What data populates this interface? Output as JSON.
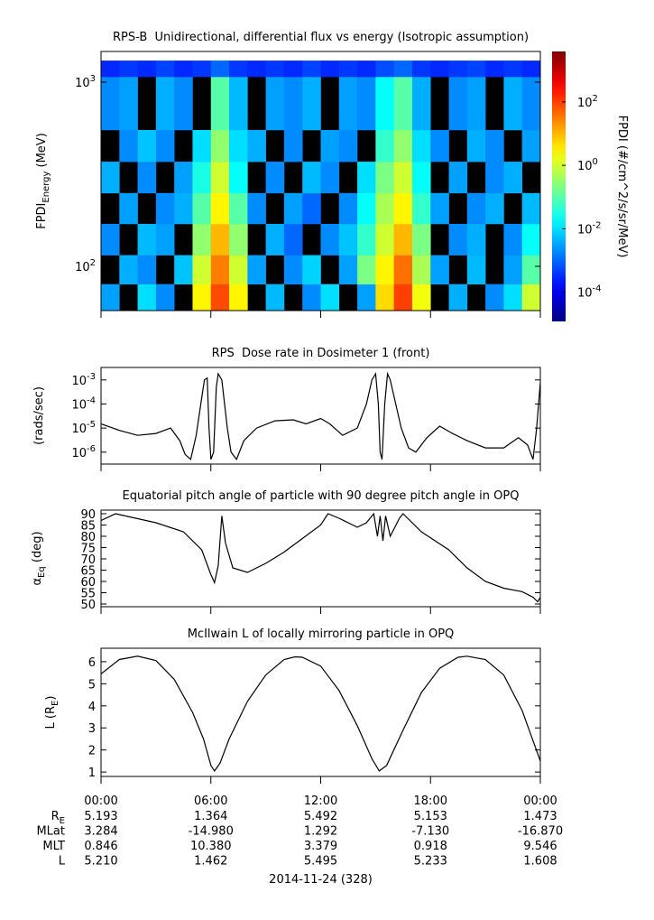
{
  "chart_data": [
    {
      "type": "heatmap",
      "title": "RPS-B  Unidirectional, differential flux vs energy (Isotropic assumption)",
      "ylabel": "FPDI_{Energy} (MeV)",
      "ylog": true,
      "ylim": [
        57.5,
        1468
      ],
      "yticks": [
        {
          "value": 100,
          "label": "10^{2}"
        },
        {
          "value": 1000,
          "label": "10^{3}"
        }
      ],
      "xlim": [
        0,
        24
      ],
      "xticks": [
        0,
        6,
        12,
        18,
        24
      ],
      "xbins": [
        0,
        1,
        2,
        3,
        4,
        5,
        6,
        7,
        8,
        9,
        10,
        11,
        12,
        13,
        14,
        15,
        16,
        17,
        18,
        19,
        20,
        21,
        22,
        23,
        24
      ],
      "ybins": [
        57.5,
        80,
        115,
        170,
        250,
        370,
        550,
        1070,
        1310
      ],
      "z": [
        [
          0.003,
          null,
          0.01,
          0.002,
          null,
          3,
          80,
          3,
          null,
          0.005,
          null,
          0.002,
          0.01,
          null,
          0.003,
          5,
          100,
          2,
          null,
          0.004,
          null,
          0.002,
          0.01,
          1
        ],
        [
          null,
          0.004,
          0.002,
          null,
          0.006,
          1,
          30,
          1,
          0.003,
          null,
          0.002,
          0.008,
          null,
          0.003,
          0.2,
          3,
          40,
          0.5,
          0.003,
          null,
          0.005,
          null,
          0.003,
          0.1
        ],
        [
          0.002,
          null,
          0.005,
          0.003,
          null,
          0.3,
          10,
          0.3,
          null,
          0.004,
          0.001,
          null,
          0.002,
          0.006,
          0.05,
          1,
          10,
          0.2,
          null,
          0.002,
          0.004,
          null,
          0.002,
          0.02
        ],
        [
          null,
          0.003,
          null,
          0.002,
          0.004,
          0.1,
          3,
          0.1,
          0.002,
          null,
          0.003,
          0.001,
          null,
          0.002,
          0.02,
          0.5,
          3,
          0.05,
          0.003,
          null,
          0.002,
          0.004,
          null,
          0.005
        ],
        [
          0.004,
          null,
          0.002,
          null,
          0.003,
          0.03,
          1,
          0.02,
          null,
          0.002,
          null,
          0.005,
          0.002,
          null,
          0.01,
          0.2,
          1,
          0.02,
          null,
          0.003,
          null,
          0.002,
          0.004,
          null
        ],
        [
          null,
          0.002,
          0.006,
          0.002,
          null,
          0.01,
          0.3,
          0.01,
          0.004,
          null,
          0.002,
          null,
          0.003,
          0.002,
          null,
          0.05,
          0.3,
          0.01,
          0.002,
          null,
          0.004,
          0.002,
          null,
          0.003
        ],
        [
          0.002,
          0.003,
          null,
          0.004,
          0.002,
          null,
          0.1,
          0.005,
          null,
          0.003,
          0.002,
          0.004,
          null,
          0.003,
          0.002,
          0.02,
          0.1,
          0.004,
          null,
          0.002,
          0.003,
          null,
          0.004,
          0.002
        ],
        [
          0.0003,
          0.0004,
          0.0003,
          0.0005,
          0.0003,
          0.0004,
          0.001,
          0.0004,
          0.0003,
          0.0004,
          0.0003,
          0.0005,
          0.0003,
          0.0004,
          0.0003,
          0.0006,
          0.001,
          0.0004,
          0.0003,
          0.0004,
          0.0005,
          0.0003,
          0.0004,
          0.0003
        ]
      ],
      "colorbar": {
        "label": "FPDI (#/cm^2/s/sr/MeV)",
        "log": true,
        "clim": [
          1.2e-05,
          3900
        ],
        "ticks": [
          {
            "value": 0.0001,
            "label": "10^{-4}"
          },
          {
            "value": 0.01,
            "label": "10^{-2}"
          },
          {
            "value": 1,
            "label": "10^{0}"
          },
          {
            "value": 100,
            "label": "10^{2}"
          }
        ]
      }
    },
    {
      "type": "line",
      "title": "RPS  Dose rate in Dosimeter 1 (front)",
      "ylabel": "(rads/sec)",
      "ylog": true,
      "ylim": [
        3.2e-07,
        0.0033
      ],
      "yticks": [
        {
          "value": 1e-06,
          "label": "10^{-6}"
        },
        {
          "value": 1e-05,
          "label": "10^{-5}"
        },
        {
          "value": 0.0001,
          "label": "10^{-4}"
        },
        {
          "value": 0.001,
          "label": "10^{-3}"
        }
      ],
      "xlim": [
        0,
        24
      ],
      "xticks": [
        0,
        6,
        12,
        18,
        24
      ],
      "color": "#000000",
      "x": [
        0,
        1,
        2,
        3,
        3.8,
        4.3,
        4.6,
        4.9,
        5.2,
        5.45,
        5.65,
        5.8,
        5.9,
        6.0,
        6.15,
        6.3,
        6.4,
        6.6,
        6.9,
        7.1,
        7.4,
        7.8,
        8.5,
        9.5,
        10.5,
        11.2,
        12,
        12.5,
        13.2,
        14,
        14.5,
        14.8,
        15.0,
        15.15,
        15.25,
        15.35,
        15.5,
        15.65,
        15.8,
        16.1,
        16.4,
        16.8,
        17.2,
        17.8,
        18.5,
        19.2,
        20,
        21,
        22,
        22.8,
        23.3,
        23.6,
        23.8,
        24
      ],
      "values": [
        1.5e-05,
        8e-06,
        5e-06,
        6e-06,
        1e-05,
        3e-06,
        8e-07,
        5e-07,
        5e-06,
        0.0001,
        0.001,
        0.0012,
        1e-05,
        5e-07,
        1e-06,
        0.0005,
        0.0018,
        0.001,
        1e-05,
        1e-06,
        5e-07,
        3e-06,
        1e-05,
        2e-05,
        2.2e-05,
        1.5e-05,
        2.5e-05,
        1.5e-05,
        5e-06,
        1e-05,
        0.0001,
        0.001,
        0.0018,
        0.0001,
        1e-06,
        5e-07,
        0.0001,
        0.0018,
        0.001,
        0.0001,
        1e-05,
        1.5e-06,
        1e-06,
        4e-06,
        1.2e-05,
        6e-06,
        3e-06,
        1.5e-06,
        1.5e-06,
        4e-06,
        2e-06,
        5e-07,
        1e-05,
        0.0008
      ]
    },
    {
      "type": "line",
      "title": "Equatorial pitch angle of particle with 90 degree pitch angle in OPQ",
      "ylabel": "α_{Eq} (deg)",
      "ylim": [
        48.8,
        91.6
      ],
      "yticks": [
        50,
        55,
        60,
        65,
        70,
        75,
        80,
        85,
        90
      ],
      "xlim": [
        0,
        24
      ],
      "xticks": [
        0,
        6,
        12,
        18,
        24
      ],
      "color": "#000000",
      "x": [
        0,
        0.8,
        3,
        4.5,
        5.5,
        6,
        6.2,
        6.4,
        6.6,
        6.8,
        7.2,
        8,
        9,
        10,
        11,
        12,
        12.4,
        13,
        14,
        14.5,
        14.9,
        15.1,
        15.25,
        15.4,
        15.55,
        15.8,
        16.3,
        16.5,
        17.5,
        19,
        20,
        21,
        22,
        23,
        23.6,
        23.85,
        24
      ],
      "values": [
        87,
        90,
        86,
        82,
        74,
        63,
        59.5,
        67,
        89,
        77,
        66,
        64,
        68,
        73,
        79,
        85,
        90,
        88,
        84,
        86,
        90,
        80,
        89,
        78,
        89,
        80,
        88,
        90,
        82,
        74,
        66,
        60,
        57,
        55.5,
        53,
        51,
        53
      ]
    },
    {
      "type": "line",
      "title": "McIlwain L of locally mirroring particle in OPQ",
      "ylabel": "L (R_{E})",
      "ylim": [
        0.8,
        6.61
      ],
      "yticks": [
        1,
        2,
        3,
        4,
        5,
        6
      ],
      "xlim": [
        0,
        24
      ],
      "xticks": [
        {
          "value": 0,
          "label": "00:00"
        },
        {
          "value": 6,
          "label": "06:00"
        },
        {
          "value": 12,
          "label": "12:00"
        },
        {
          "value": 18,
          "label": "18:00"
        },
        {
          "value": 24,
          "label": "00:00"
        }
      ],
      "color": "#000000",
      "x": [
        0,
        1,
        2,
        3,
        4,
        5,
        5.6,
        6,
        6.2,
        6.5,
        7,
        8,
        9,
        10,
        10.6,
        11,
        12,
        13,
        14,
        14.8,
        15.2,
        15.6,
        16.5,
        17.5,
        18.5,
        19.5,
        20,
        21,
        22,
        23,
        24
      ],
      "values": [
        5.45,
        6.1,
        6.25,
        6.05,
        5.2,
        3.7,
        2.5,
        1.3,
        1.05,
        1.4,
        2.5,
        4.2,
        5.4,
        6.1,
        6.22,
        6.2,
        5.8,
        4.7,
        3.1,
        1.6,
        1.05,
        1.3,
        2.9,
        4.6,
        5.7,
        6.2,
        6.25,
        6.1,
        5.4,
        3.8,
        1.5
      ]
    }
  ],
  "ephemeris": {
    "rows": [
      {
        "label": "R_{E}",
        "values": [
          "5.193",
          "1.364",
          "5.492",
          "5.153",
          "1.473"
        ]
      },
      {
        "label": "MLat",
        "values": [
          "3.284",
          "-14.980",
          "1.292",
          "-7.130",
          "-16.870"
        ]
      },
      {
        "label": "MLT",
        "values": [
          "0.846",
          "10.380",
          "3.379",
          "0.918",
          "9.546"
        ]
      },
      {
        "label": "L",
        "values": [
          "5.210",
          "1.462",
          "5.495",
          "5.233",
          "1.608"
        ]
      }
    ],
    "date": "2014-11-24 (328)"
  }
}
